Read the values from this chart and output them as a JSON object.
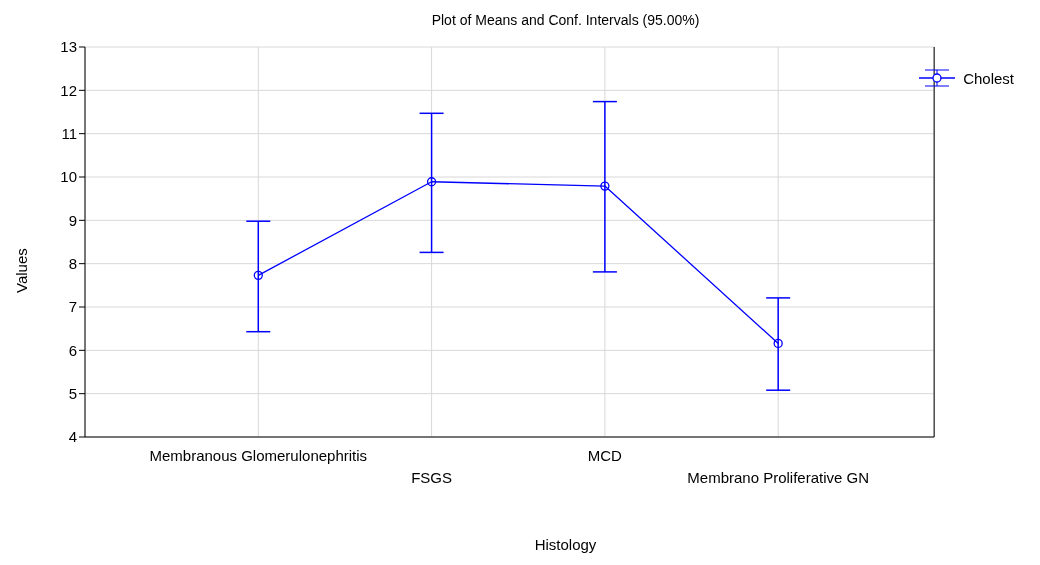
{
  "chart_data": {
    "type": "line",
    "title": "Plot of Means and Conf. Intervals (95.00%)",
    "xlabel": "Histology",
    "ylabel": "Values",
    "categories": [
      "Membranous Glomerulonephritis",
      "FSGS",
      "MCD",
      "Membrano Proliferative GN"
    ],
    "series": [
      {
        "name": "Cholest",
        "color": "#0000ff",
        "values": [
          7.73,
          9.89,
          9.79,
          6.16
        ],
        "errors": [
          [
            6.43,
            8.98
          ],
          [
            8.26,
            11.47
          ],
          [
            7.81,
            11.74
          ],
          [
            5.08,
            7.21
          ]
        ]
      }
    ],
    "ylim": [
      4,
      13
    ],
    "yticks": [
      4,
      5,
      6,
      7,
      8,
      9,
      10,
      11,
      12,
      13
    ],
    "grid": true,
    "legend": "top right",
    "marker": "circle",
    "line_style": "solid"
  }
}
